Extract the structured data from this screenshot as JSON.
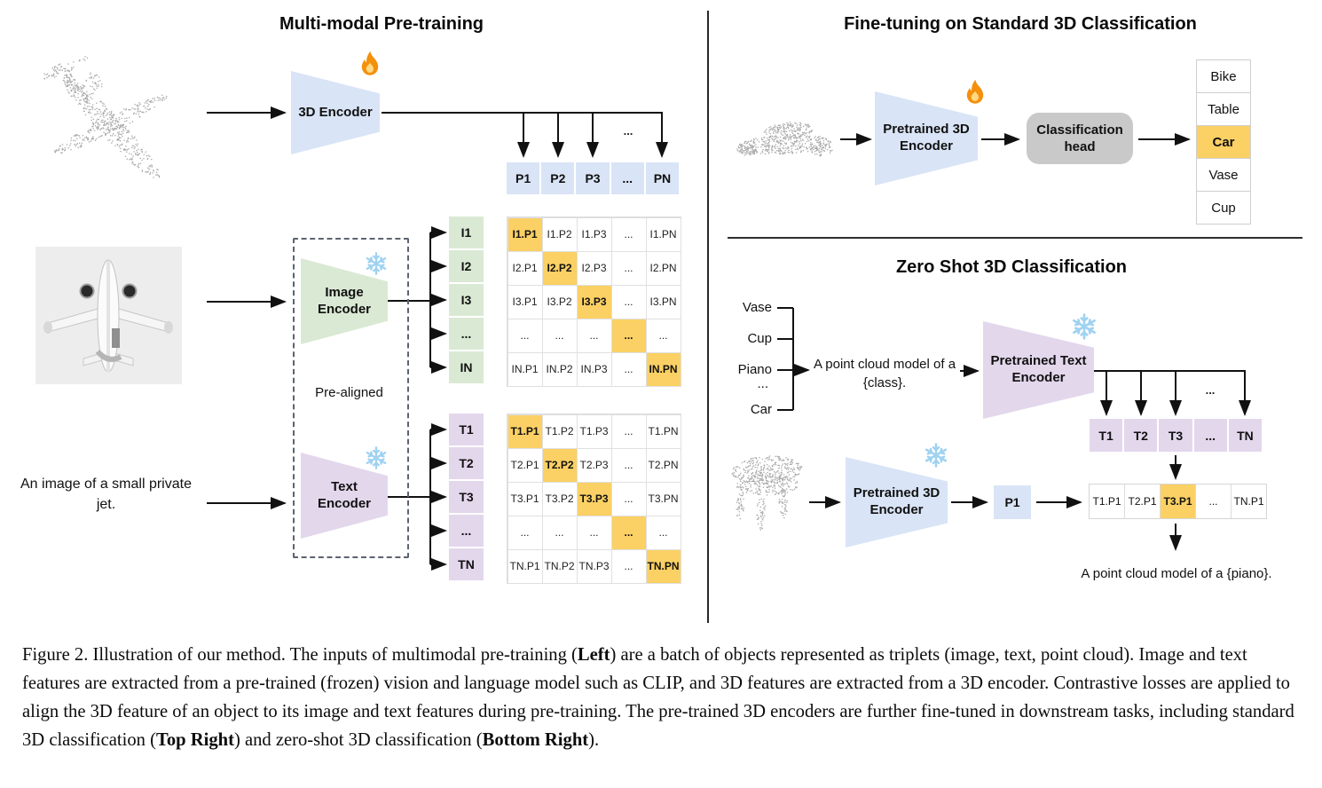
{
  "colors": {
    "blue": "#d9e4f6",
    "green": "#dae9d4",
    "purple": "#e3d7ec",
    "orange": "#fbd064",
    "head-gray": "#c9c9c9",
    "point-gray": "#a9a9a9",
    "snow-blue": "#9fd2f1",
    "flame-orange": "#f4900c",
    "flame-yellow": "#ffd983"
  },
  "pretrain": {
    "title": "Multi-modal Pre-training",
    "encoder_3d_label": "3D Encoder",
    "image_encoder_label": "Image Encoder",
    "text_encoder_label": "Text Encoder",
    "pre_aligned_label": "Pre-aligned",
    "image_caption": "An image of a small private jet.",
    "dots": "...",
    "p_row": [
      "P1",
      "P2",
      "P3",
      "...",
      "PN"
    ],
    "i_labels": [
      "I1",
      "I2",
      "I3",
      "...",
      "IN"
    ],
    "t_labels": [
      "T1",
      "T2",
      "T3",
      "...",
      "TN"
    ],
    "i_matrix": [
      [
        "I1.P1",
        "I1.P2",
        "I1.P3",
        "...",
        "I1.PN"
      ],
      [
        "I2.P1",
        "I2.P2",
        "I2.P3",
        "...",
        "I2.PN"
      ],
      [
        "I3.P1",
        "I3.P2",
        "I3.P3",
        "...",
        "I3.PN"
      ],
      [
        "...",
        "...",
        "...",
        "...",
        "..."
      ],
      [
        "IN.P1",
        "IN.P2",
        "IN.P3",
        "...",
        "IN.PN"
      ]
    ],
    "t_matrix": [
      [
        "T1.P1",
        "T1.P2",
        "T1.P3",
        "...",
        "T1.PN"
      ],
      [
        "T2.P1",
        "T2.P2",
        "T2.P3",
        "...",
        "T2.PN"
      ],
      [
        "T3.P1",
        "T3.P2",
        "T3.P3",
        "...",
        "T3.PN"
      ],
      [
        "...",
        "...",
        "...",
        "...",
        "..."
      ],
      [
        "TN.P1",
        "TN.P2",
        "TN.P3",
        "...",
        "TN.PN"
      ]
    ],
    "icons": {
      "fire": "flame-icon",
      "snowflake": "snowflake-icon"
    },
    "clouds": {
      "airplane": "airplane-point-cloud"
    }
  },
  "finetune": {
    "title": "Fine-tuning on Standard 3D Classification",
    "encoder_label": "Pretrained 3D Encoder",
    "head_label": "Classification head",
    "classes": [
      "Bike",
      "Table",
      "Car",
      "Vase",
      "Cup"
    ],
    "predicted_class": "Car",
    "clouds": {
      "car": "car-point-cloud"
    }
  },
  "zeroshot": {
    "title": "Zero Shot 3D Classification",
    "candidate_classes": [
      "Vase",
      "Cup",
      "Piano",
      "...",
      "Car"
    ],
    "prompt": "A point cloud model of a {class}.",
    "text_encoder_label": "Pretrained Text Encoder",
    "encoder_label": "Pretrained 3D Encoder",
    "t_row": [
      "T1",
      "T2",
      "T3",
      "...",
      "TN"
    ],
    "p_cell": "P1",
    "result_row": [
      "T1.P1",
      "T2.P1",
      "T3.P1",
      "...",
      "TN.P1"
    ],
    "predicted": "T3.P1",
    "dots": "...",
    "output_text": "A point cloud model of a {piano}.",
    "clouds": {
      "piano": "piano-point-cloud"
    }
  },
  "caption": {
    "segments": [
      {
        "t": "Figure 2. Illustration of our method.  The inputs of multimodal pre-training (",
        "b": false
      },
      {
        "t": "Left",
        "b": true
      },
      {
        "t": ") are a batch of objects represented as triplets (image, text, point cloud).  Image and text features are extracted from a pre-trained (frozen) vision and language model such as CLIP, and 3D features are extracted from a 3D encoder.  Contrastive losses are applied to align the 3D feature of an object to its image and text features during pre-training.  The pre-trained 3D encoders are further fine-tuned in downstream tasks, including standard 3D classification (",
        "b": false
      },
      {
        "t": "Top Right",
        "b": true
      },
      {
        "t": ") and zero-shot 3D classification (",
        "b": false
      },
      {
        "t": "Bottom Right",
        "b": true
      },
      {
        "t": ").",
        "b": false
      }
    ]
  }
}
